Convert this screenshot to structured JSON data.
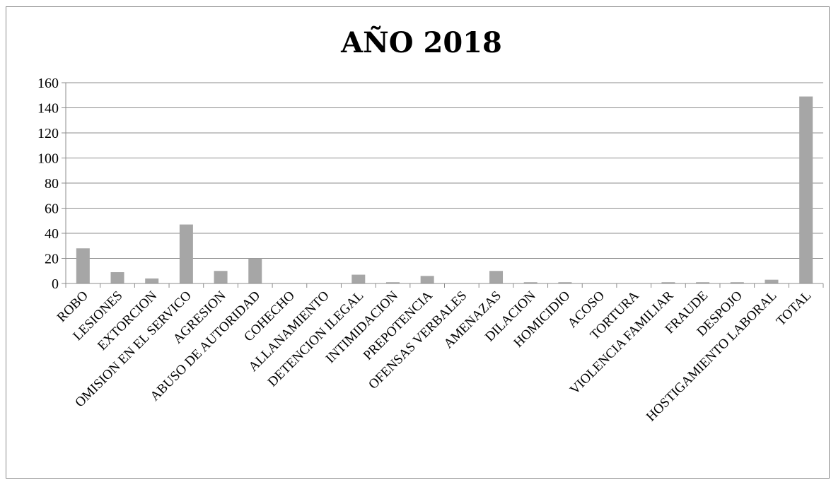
{
  "chart_data": {
    "type": "bar",
    "title": "AÑO 2018",
    "xlabel": "",
    "ylabel": "",
    "ylim": [
      0,
      160
    ],
    "yticks": [
      0,
      20,
      40,
      60,
      80,
      100,
      120,
      140,
      160
    ],
    "grid": true,
    "legend": "none",
    "bar_color": "#a6a6a6",
    "categories": [
      "ROBO",
      "LESIONES",
      "EXTORCION",
      "OMISION EN EL SERVICO",
      "AGRESION",
      "ABUSO DE AUTORIDAD",
      "COHECHO",
      "ALLANAMIENTO",
      "DETENCION ILEGAL",
      "INTIMIDACION",
      "PREPOTENCIA",
      "OFENSAS VERBALES",
      "AMENAZAS",
      "DILACION",
      "HOMICIDIO",
      "ACOSO",
      "TORTURA",
      "VIOLENCIA FAMILIAR",
      "FRAUDE",
      "DESPOJO",
      "HOSTIGAMIENTO LABORAL",
      "TOTAL"
    ],
    "values": [
      28,
      9,
      4,
      47,
      10,
      20,
      0,
      0,
      7,
      1,
      6,
      0,
      10,
      1,
      1,
      0,
      0,
      1,
      1,
      1,
      3,
      149
    ]
  }
}
